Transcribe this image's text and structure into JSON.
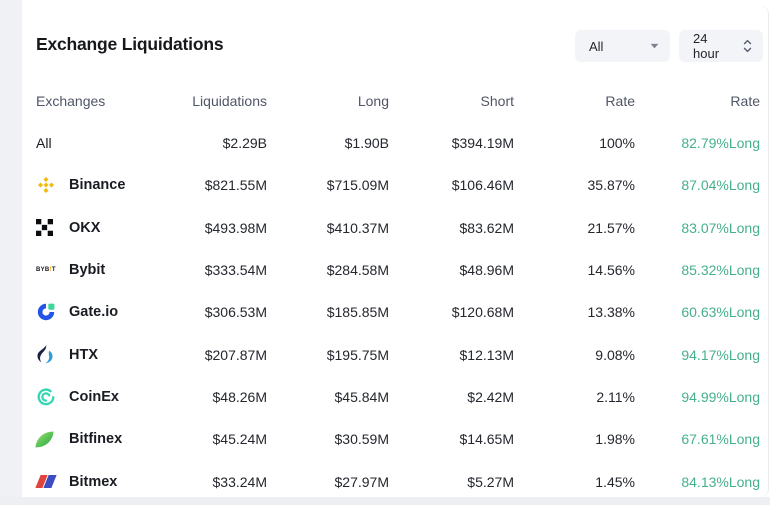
{
  "title": "Exchange Liquidations",
  "filters": {
    "exchange_filter": {
      "value": "All"
    },
    "timeframe_filter": {
      "value": "24 hour"
    }
  },
  "table": {
    "columns": [
      "Exchanges",
      "Liquidations",
      "Long",
      "Short",
      "Rate",
      "Rate"
    ],
    "rows": [
      {
        "name": "All",
        "icon": "none",
        "liquidations": "$2.29B",
        "long": "$1.90B",
        "short": "$394.19M",
        "rate": "100%",
        "long_rate": "82.79%Long",
        "bold": false
      },
      {
        "name": "Binance",
        "icon": "binance-icon",
        "liquidations": "$821.55M",
        "long": "$715.09M",
        "short": "$106.46M",
        "rate": "35.87%",
        "long_rate": "87.04%Long",
        "bold": true
      },
      {
        "name": "OKX",
        "icon": "okx-icon",
        "liquidations": "$493.98M",
        "long": "$410.37M",
        "short": "$83.62M",
        "rate": "21.57%",
        "long_rate": "83.07%Long",
        "bold": true
      },
      {
        "name": "Bybit",
        "icon": "bybit-icon",
        "liquidations": "$333.54M",
        "long": "$284.58M",
        "short": "$48.96M",
        "rate": "14.56%",
        "long_rate": "85.32%Long",
        "bold": true
      },
      {
        "name": "Gate.io",
        "icon": "gateio-icon",
        "liquidations": "$306.53M",
        "long": "$185.85M",
        "short": "$120.68M",
        "rate": "13.38%",
        "long_rate": "60.63%Long",
        "bold": true
      },
      {
        "name": "HTX",
        "icon": "htx-icon",
        "liquidations": "$207.87M",
        "long": "$195.75M",
        "short": "$12.13M",
        "rate": "9.08%",
        "long_rate": "94.17%Long",
        "bold": true
      },
      {
        "name": "CoinEx",
        "icon": "coinex-icon",
        "liquidations": "$48.26M",
        "long": "$45.84M",
        "short": "$2.42M",
        "rate": "2.11%",
        "long_rate": "94.99%Long",
        "bold": true
      },
      {
        "name": "Bitfinex",
        "icon": "bitfinex-icon",
        "liquidations": "$45.24M",
        "long": "$30.59M",
        "short": "$14.65M",
        "rate": "1.98%",
        "long_rate": "67.61%Long",
        "bold": true
      },
      {
        "name": "Bitmex",
        "icon": "bitmex-icon",
        "liquidations": "$33.24M",
        "long": "$27.97M",
        "short": "$5.27M",
        "rate": "1.45%",
        "long_rate": "84.13%Long",
        "bold": true
      }
    ]
  },
  "colors": {
    "long_rate_green": "#45b08c",
    "binance_yellow": "#F0B90B"
  }
}
